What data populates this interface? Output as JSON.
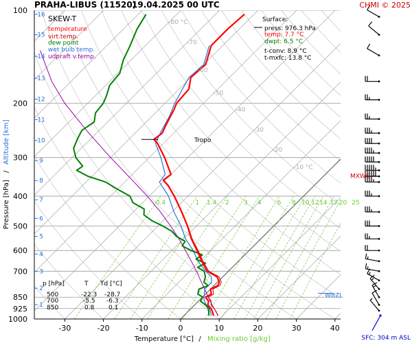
{
  "header": {
    "station": "PRAHA-LIBUS (11520)",
    "datetime": "19.04.2025 00 UTC",
    "credit": "CHMI © 2025",
    "diagram_type": "SKEW-T"
  },
  "legend": [
    {
      "label": "temperature",
      "color": "#ff0000"
    },
    {
      "label": "virt.temp.",
      "color": "#cc0000"
    },
    {
      "label": "dew point",
      "color": "#008000"
    },
    {
      "label": "wet bulb temp.",
      "color": "#2a6fdc"
    },
    {
      "label": "udpraft v.temp.",
      "color": "#9900aa"
    }
  ],
  "surface": {
    "title": "Surface:",
    "press": "press: 976.3 hPa",
    "temp": "temp: 7.7 °C",
    "dwpt": "dwpt: 6.5 °C",
    "tconv": "t-conv: 8.9 °C",
    "tmxfc": "t-mxfc: 13.8 °C"
  },
  "levels_table": {
    "headers": [
      "p [hPa]",
      "T",
      "Td [°C]"
    ],
    "rows": [
      [
        "500",
        "-22.3",
        "-28.7"
      ],
      [
        "700",
        "-5.5",
        "-6.3"
      ],
      [
        "850",
        "0.8",
        "0.1"
      ]
    ]
  },
  "annotations": {
    "tropo": "Tropo",
    "mxws": "MXWS",
    "wbzl": "WBZL",
    "sfc": "SFC: 304 m ASL"
  },
  "colors": {
    "temperature": "#ff0000",
    "virt_temp": "#cc0000",
    "dew_point": "#008000",
    "wet_bulb": "#2a6fdc",
    "updraft": "#9900aa",
    "mixing": "#66cc33",
    "isotherm_label": "#aaaaaa",
    "mxws": "#cc0000",
    "wbzl": "#2a6fdc",
    "sfc": "#0000cc"
  },
  "chart_data": {
    "type": "line",
    "title": "",
    "xlabel_temp": "Temperature [°C]",
    "xlabel_sep": "/",
    "xlabel_mix": "Mixing ratio [g/kg]",
    "ylabel_p": "Pressure [hPa]",
    "ylabel_sep": "/",
    "ylabel_alt": "Altitude [km]",
    "y_scale": "log",
    "ylim": [
      1000,
      100
    ],
    "xlim": [
      -35,
      45
    ],
    "x_ticks": [
      -30,
      -20,
      -10,
      0,
      10,
      20,
      30,
      40
    ],
    "p_ticks": [
      100,
      200,
      300,
      400,
      500,
      600,
      700,
      850,
      925,
      1000
    ],
    "alt_ticks": [
      {
        "label": "16",
        "p": 103
      },
      {
        "label": "15",
        "p": 120
      },
      {
        "label": "14",
        "p": 141
      },
      {
        "label": "13",
        "p": 166
      },
      {
        "label": "12",
        "p": 194
      },
      {
        "label": "11",
        "p": 226
      },
      {
        "label": "10",
        "p": 264
      },
      {
        "label": "9",
        "p": 307
      },
      {
        "label": "8",
        "p": 356
      },
      {
        "label": "7",
        "p": 411
      },
      {
        "label": "6",
        "p": 472
      },
      {
        "label": "5",
        "p": 540
      },
      {
        "label": "4",
        "p": 616
      },
      {
        "label": "3",
        "p": 701
      },
      {
        "label": "2",
        "p": 795
      },
      {
        "label": "1",
        "p": 899
      }
    ],
    "isotherm_labels": [
      {
        "label": "-80 °C",
        "t": -80
      },
      {
        "label": "-70",
        "t": -70
      },
      {
        "label": "-60",
        "t": -60
      },
      {
        "label": "-50",
        "t": -50
      },
      {
        "label": "-40",
        "t": -40
      },
      {
        "label": "-30",
        "t": -30
      },
      {
        "label": "-20",
        "t": -20
      },
      {
        "label": "-10 °C",
        "t": -10
      }
    ],
    "mixing_labels": [
      "0.4",
      "1",
      "1.4",
      "2",
      "3",
      "4",
      "6",
      "8",
      "10",
      "12",
      "14",
      "17",
      "20",
      "25"
    ],
    "series": [
      {
        "name": "temperature",
        "points": [
          [
            976,
            7.7
          ],
          [
            950,
            6.5
          ],
          [
            925,
            5.2
          ],
          [
            900,
            3.4
          ],
          [
            875,
            2.6
          ],
          [
            850,
            0.8
          ],
          [
            830,
            1.5
          ],
          [
            800,
            0.0
          ],
          [
            780,
            1.0
          ],
          [
            760,
            0.5
          ],
          [
            730,
            -1.5
          ],
          [
            700,
            -5.5
          ],
          [
            650,
            -9.5
          ],
          [
            600,
            -13.5
          ],
          [
            550,
            -18.0
          ],
          [
            500,
            -22.3
          ],
          [
            450,
            -27.5
          ],
          [
            400,
            -33.5
          ],
          [
            370,
            -37.8
          ],
          [
            355,
            -40.5
          ],
          [
            340,
            -40.0
          ],
          [
            300,
            -46.0
          ],
          [
            270,
            -51.5
          ],
          [
            262,
            -53.5
          ],
          [
            250,
            -53.0
          ],
          [
            230,
            -54.5
          ],
          [
            210,
            -56.0
          ],
          [
            200,
            -57.0
          ],
          [
            180,
            -57.5
          ],
          [
            165,
            -60.0
          ],
          [
            150,
            -59.5
          ],
          [
            130,
            -63.0
          ],
          [
            115,
            -63.0
          ],
          [
            103,
            -62.5
          ]
        ]
      },
      {
        "name": "virt.temp.",
        "points": [
          [
            976,
            8.8
          ],
          [
            950,
            7.5
          ],
          [
            925,
            6.0
          ],
          [
            900,
            4.2
          ],
          [
            875,
            3.3
          ],
          [
            850,
            1.5
          ],
          [
            830,
            2.1
          ],
          [
            800,
            0.6
          ],
          [
            780,
            1.5
          ],
          [
            760,
            1.0
          ],
          [
            730,
            -1.0
          ],
          [
            700,
            -5.1
          ],
          [
            650,
            -9.2
          ],
          [
            600,
            -13.2
          ],
          [
            550,
            -17.8
          ],
          [
            500,
            -22.2
          ],
          [
            450,
            -27.4
          ],
          [
            400,
            -33.4
          ],
          [
            370,
            -37.7
          ],
          [
            355,
            -40.4
          ],
          [
            340,
            -39.9
          ],
          [
            300,
            -46.0
          ],
          [
            270,
            -51.5
          ],
          [
            262,
            -53.5
          ],
          [
            250,
            -53.0
          ],
          [
            230,
            -54.5
          ],
          [
            210,
            -56.0
          ],
          [
            200,
            -57.0
          ],
          [
            180,
            -57.5
          ],
          [
            165,
            -60.0
          ],
          [
            150,
            -59.5
          ],
          [
            130,
            -63.0
          ],
          [
            115,
            -63.0
          ],
          [
            103,
            -62.5
          ]
        ]
      },
      {
        "name": "dew point",
        "points": [
          [
            976,
            6.5
          ],
          [
            950,
            5.5
          ],
          [
            925,
            4.5
          ],
          [
            900,
            2.8
          ],
          [
            875,
            0.5
          ],
          [
            850,
            0.1
          ],
          [
            830,
            -2.0
          ],
          [
            800,
            -3.0
          ],
          [
            780,
            -1.5
          ],
          [
            760,
            -3.5
          ],
          [
            730,
            -4.5
          ],
          [
            700,
            -6.3
          ],
          [
            680,
            -9.0
          ],
          [
            660,
            -8.0
          ],
          [
            640,
            -11.5
          ],
          [
            620,
            -11.0
          ],
          [
            600,
            -15.0
          ],
          [
            580,
            -18.5
          ],
          [
            560,
            -19.0
          ],
          [
            540,
            -22.5
          ],
          [
            520,
            -25.0
          ],
          [
            500,
            -28.7
          ],
          [
            480,
            -33.0
          ],
          [
            460,
            -36.5
          ],
          [
            440,
            -38.0
          ],
          [
            420,
            -42.5
          ],
          [
            400,
            -45.0
          ],
          [
            380,
            -50.0
          ],
          [
            360,
            -55.0
          ],
          [
            345,
            -61.0
          ],
          [
            330,
            -65.5
          ],
          [
            320,
            -65.0
          ],
          [
            300,
            -69.0
          ],
          [
            280,
            -72.0
          ],
          [
            260,
            -73.5
          ],
          [
            245,
            -74.5
          ],
          [
            230,
            -73.5
          ],
          [
            215,
            -75.5
          ],
          [
            200,
            -76.0
          ],
          [
            190,
            -77.0
          ],
          [
            175,
            -79.0
          ],
          [
            160,
            -79.5
          ],
          [
            145,
            -82.0
          ],
          [
            130,
            -84.0
          ],
          [
            115,
            -86.5
          ],
          [
            103,
            -88.0
          ]
        ]
      },
      {
        "name": "wet bulb temp.",
        "points": [
          [
            976,
            7.1
          ],
          [
            950,
            6.0
          ],
          [
            925,
            4.8
          ],
          [
            900,
            3.0
          ],
          [
            875,
            1.5
          ],
          [
            850,
            0.4
          ],
          [
            800,
            -1.5
          ],
          [
            760,
            -1.5
          ],
          [
            730,
            -3.0
          ],
          [
            700,
            -5.9
          ],
          [
            650,
            -10.5
          ],
          [
            600,
            -14.5
          ],
          [
            550,
            -19.5
          ],
          [
            500,
            -24.0
          ],
          [
            450,
            -29.5
          ],
          [
            400,
            -35.0
          ],
          [
            360,
            -41.0
          ],
          [
            340,
            -41.5
          ],
          [
            300,
            -47.0
          ],
          [
            270,
            -52.0
          ],
          [
            250,
            -53.5
          ],
          [
            220,
            -55.5
          ],
          [
            200,
            -57.5
          ],
          [
            165,
            -60.5
          ],
          [
            150,
            -60.0
          ],
          [
            130,
            -63.5
          ]
        ]
      },
      {
        "name": "udpraft v.temp.",
        "points": [
          [
            976,
            8.9
          ],
          [
            900,
            4.5
          ],
          [
            850,
            1.5
          ],
          [
            800,
            -1.5
          ],
          [
            750,
            -4.8
          ],
          [
            700,
            -8.3
          ],
          [
            650,
            -12.2
          ],
          [
            600,
            -16.5
          ],
          [
            550,
            -21.2
          ],
          [
            500,
            -26.7
          ],
          [
            450,
            -33.0
          ],
          [
            400,
            -40.5
          ],
          [
            350,
            -49.5
          ],
          [
            300,
            -60.0
          ],
          [
            250,
            -72.0
          ],
          [
            200,
            -86.0
          ],
          [
            170,
            -95.0
          ],
          [
            150,
            -101.0
          ],
          [
            135,
            -106.0
          ]
        ]
      }
    ],
    "wind_barbs": [
      {
        "p": 105,
        "dir": 300,
        "kt": 10
      },
      {
        "p": 120,
        "dir": 310,
        "kt": 10
      },
      {
        "p": 140,
        "dir": 300,
        "kt": 10
      },
      {
        "p": 170,
        "dir": 270,
        "kt": 20
      },
      {
        "p": 195,
        "dir": 270,
        "kt": 25
      },
      {
        "p": 225,
        "dir": 270,
        "kt": 25
      },
      {
        "p": 250,
        "dir": 270,
        "kt": 35
      },
      {
        "p": 270,
        "dir": 270,
        "kt": 40
      },
      {
        "p": 290,
        "dir": 270,
        "kt": 45
      },
      {
        "p": 310,
        "dir": 270,
        "kt": 50
      },
      {
        "p": 330,
        "dir": 270,
        "kt": 55
      },
      {
        "p": 345,
        "dir": 270,
        "kt": 60
      },
      {
        "p": 360,
        "dir": 270,
        "kt": 45
      },
      {
        "p": 400,
        "dir": 270,
        "kt": 35
      },
      {
        "p": 450,
        "dir": 270,
        "kt": 35
      },
      {
        "p": 500,
        "dir": 270,
        "kt": 30
      },
      {
        "p": 550,
        "dir": 270,
        "kt": 25
      },
      {
        "p": 600,
        "dir": 270,
        "kt": 20
      },
      {
        "p": 650,
        "dir": 280,
        "kt": 15
      },
      {
        "p": 700,
        "dir": 280,
        "kt": 15
      },
      {
        "p": 750,
        "dir": 300,
        "kt": 15
      },
      {
        "p": 800,
        "dir": 320,
        "kt": 15
      },
      {
        "p": 850,
        "dir": 330,
        "kt": 15
      },
      {
        "p": 900,
        "dir": 330,
        "kt": 10
      },
      {
        "p": 940,
        "dir": 320,
        "kt": 5
      }
    ],
    "markers": {
      "tropo_p": 262,
      "mxws_p": 344,
      "wbzl_p": 838
    }
  }
}
